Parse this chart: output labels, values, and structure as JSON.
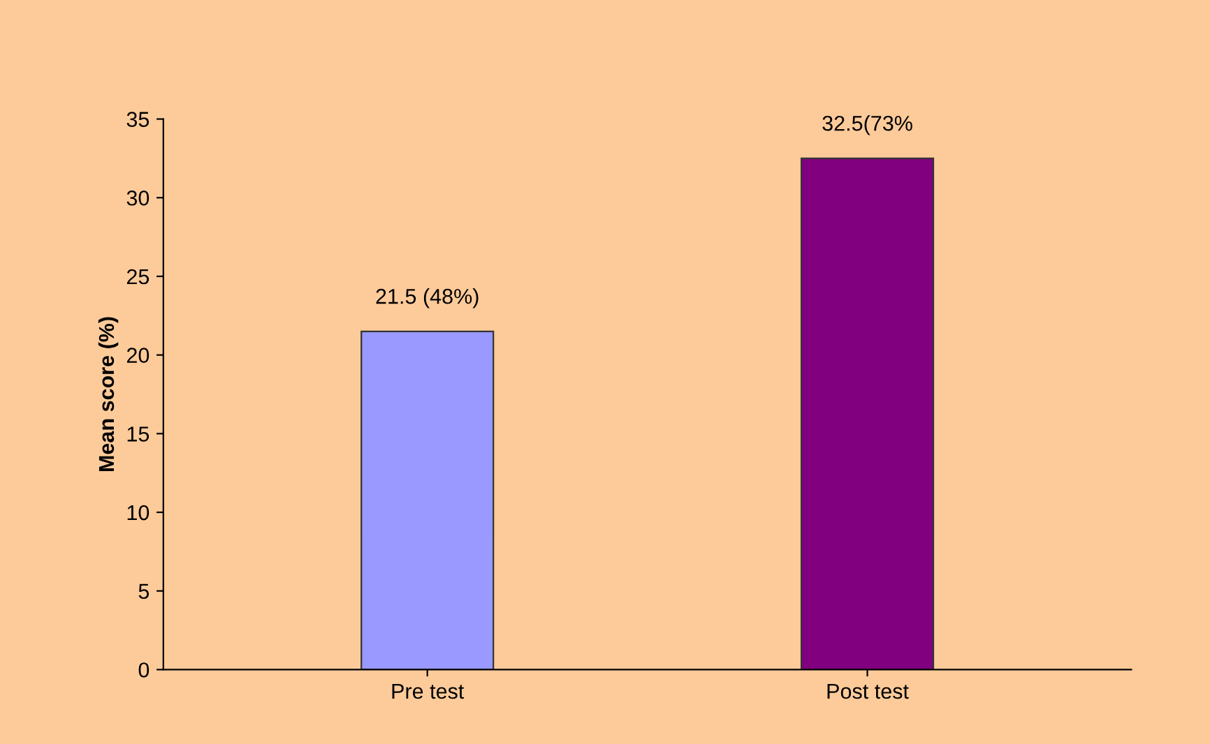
{
  "chart_data": {
    "type": "bar",
    "ylabel": "Mean score (%)",
    "categories": [
      "Pre test",
      "Post test"
    ],
    "values": [
      21.5,
      32.5
    ],
    "colors": [
      "#9999ff",
      "#800080"
    ],
    "value_labels": [
      "21.5 (48%)",
      "32.5(73%"
    ],
    "ylim": [
      0,
      35
    ],
    "yticks": [
      0,
      5,
      10,
      15,
      20,
      25,
      30,
      35
    ],
    "grid": false,
    "legend": false
  }
}
